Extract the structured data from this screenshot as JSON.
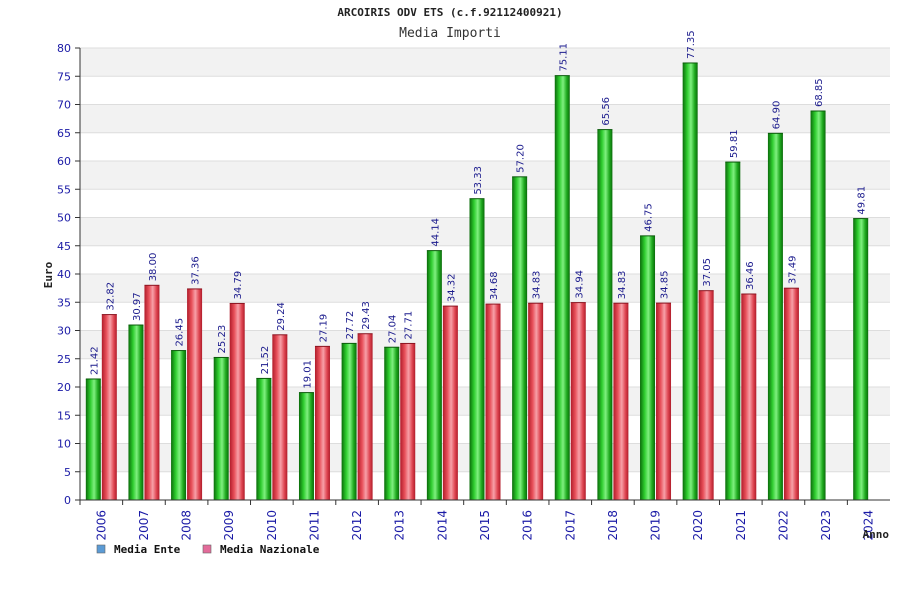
{
  "chart_data": {
    "type": "bar",
    "title": "ARCOIRIS ODV ETS (c.f.92112400921)",
    "subtitle": "Media Importi",
    "xlabel": "Anno",
    "ylabel": "Euro",
    "ylim": [
      0,
      80
    ],
    "ytick_step": 5,
    "grid": true,
    "legend_position": "bottom-left",
    "categories": [
      "2006",
      "2007",
      "2008",
      "2009",
      "2010",
      "2011",
      "2012",
      "2013",
      "2014",
      "2015",
      "2016",
      "2017",
      "2018",
      "2019",
      "2020",
      "2021",
      "2022",
      "2023",
      "2024"
    ],
    "series": [
      {
        "name": "Media Ente",
        "color": "#1fa81f",
        "legend_color": "#5b9bd5",
        "values": [
          21.42,
          30.97,
          26.45,
          25.23,
          21.52,
          19.01,
          27.72,
          27.04,
          44.14,
          53.33,
          57.2,
          75.11,
          65.56,
          46.75,
          77.35,
          59.81,
          64.9,
          68.85,
          49.81
        ],
        "labels": [
          "21.42",
          "30.97",
          "26.45",
          "25.23",
          "21.52",
          "19.01",
          "27.72",
          "27.04",
          "44.14",
          "53.33",
          "57.20",
          "75.11",
          "65.56",
          "46.75",
          "77.35",
          "59.81",
          "64.90",
          "68.85",
          "49.81"
        ]
      },
      {
        "name": "Media Nazionale",
        "color": "#e8505a",
        "legend_color": "#e36b9a",
        "values": [
          32.82,
          38.0,
          37.36,
          34.79,
          29.24,
          27.19,
          29.43,
          27.71,
          34.32,
          34.68,
          34.83,
          34.94,
          34.83,
          34.85,
          37.05,
          36.46,
          37.49,
          null,
          null
        ],
        "labels": [
          "32.82",
          "38.00",
          "37.36",
          "34.79",
          "29.24",
          "27.19",
          "29.43",
          "27.71",
          "34.32",
          "34.68",
          "34.83",
          "34.94",
          "34.83",
          "34.85",
          "37.05",
          "36.46",
          "37.49",
          null,
          null
        ]
      }
    ]
  }
}
